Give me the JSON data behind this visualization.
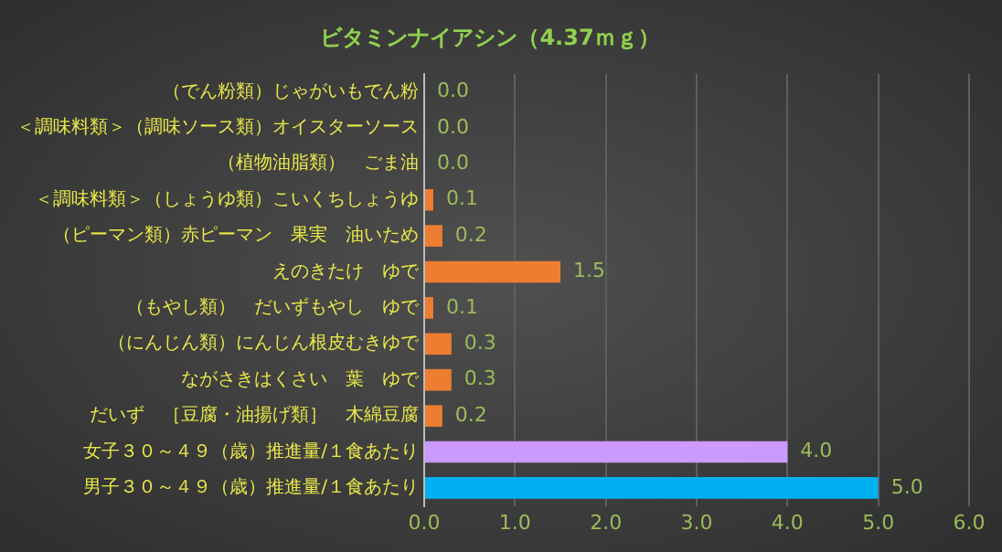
{
  "chart_data": {
    "type": "bar",
    "orientation": "horizontal",
    "title": "ビタミンナイアシン（4.37ｍｇ）",
    "categories": [
      "（でん粉類）じゃがいもでん粉",
      "＜調味料類＞（調味ソース類）オイスターソース",
      "（植物油脂類）　ごま油",
      "＜調味料類＞（しょうゆ類）こいくちしょうゆ",
      "（ピーマン類）赤ピーマン　果実　油いため",
      "えのきたけ　ゆで",
      "（もやし類）　だいずもやし　ゆで",
      "（にんじん類）にんじん根皮むきゆで",
      "ながさきはくさい　葉　ゆで",
      "だいず　［豆腐・油揚げ類］　木綿豆腐",
      "女子３０～４９（歳）推進量/１食あたり",
      "男子３０～４９（歳）推進量/１食あたり"
    ],
    "values": [
      0.0,
      0.0,
      0.0,
      0.1,
      0.2,
      1.5,
      0.1,
      0.3,
      0.3,
      0.2,
      4.0,
      5.0
    ],
    "colors": [
      "#ed7d31",
      "#ed7d31",
      "#ed7d31",
      "#ed7d31",
      "#ed7d31",
      "#ed7d31",
      "#ed7d31",
      "#ed7d31",
      "#ed7d31",
      "#ed7d31",
      "#cc99ff",
      "#00b0f0"
    ],
    "xlim": [
      0,
      6
    ],
    "xticks": [
      {
        "value": 0,
        "label": "0.0"
      },
      {
        "value": 1,
        "label": "1.0"
      },
      {
        "value": 2,
        "label": "2.0"
      },
      {
        "value": 3,
        "label": "3.0"
      },
      {
        "value": 4,
        "label": "4.0"
      },
      {
        "value": 5,
        "label": "5.0"
      },
      {
        "value": 6,
        "label": "6.0"
      }
    ],
    "value_labels": [
      "0.0",
      "0.0",
      "0.0",
      "0.1",
      "0.2",
      "1.5",
      "0.1",
      "0.3",
      "0.3",
      "0.2",
      "4.0",
      "5.0"
    ],
    "grid": "x",
    "legend": false
  }
}
